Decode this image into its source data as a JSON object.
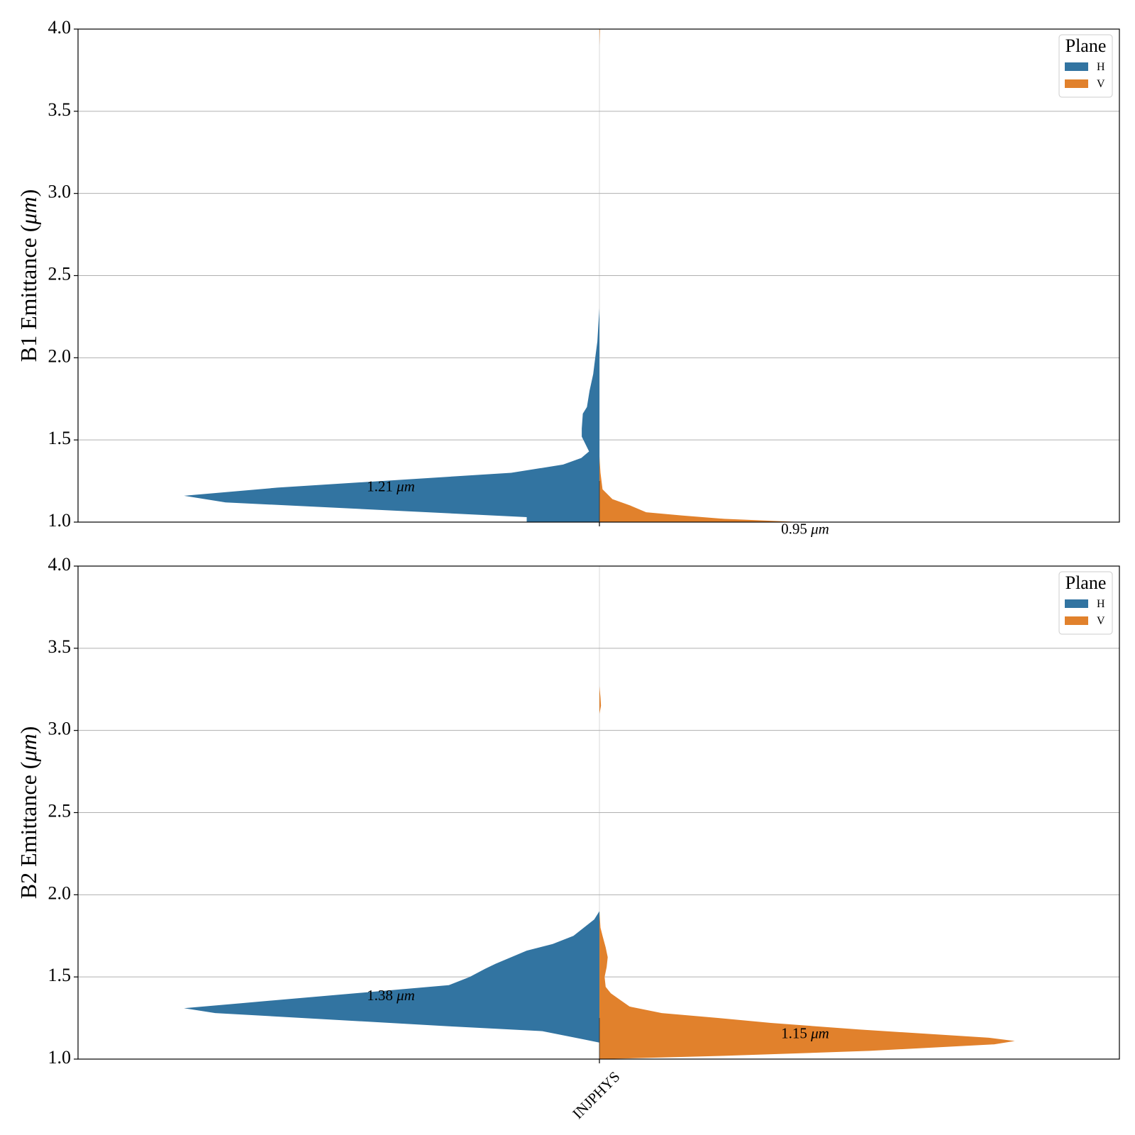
{
  "colors": {
    "H": "#3274a1",
    "V": "#e1812c",
    "grid": "#b0b0b0"
  },
  "chart_data": [
    {
      "type": "violin",
      "split": true,
      "ylabel": "B1 Emittance (μm)",
      "ylabel_prefix": "B1 Emittance (",
      "ylabel_unit": "μm",
      "ylabel_suffix": ")",
      "ylim": [
        1.0,
        4.0
      ],
      "yticks": [
        "1.0",
        "1.5",
        "2.0",
        "2.5",
        "3.0",
        "3.5",
        "4.0"
      ],
      "grid": true,
      "categories": [
        "INJPHYS"
      ],
      "legend": {
        "title": "Plane",
        "position": "top-right",
        "entries": [
          "H",
          "V"
        ]
      },
      "series": [
        {
          "name": "H",
          "side": "left",
          "profile": [
            [
              1.0,
              0.14
            ],
            [
              1.03,
              0.14
            ],
            [
              1.12,
              0.72
            ],
            [
              1.16,
              0.8
            ],
            [
              1.21,
              0.62
            ],
            [
              1.3,
              0.17
            ],
            [
              1.35,
              0.07
            ],
            [
              1.39,
              0.035
            ],
            [
              1.43,
              0.02
            ],
            [
              1.52,
              0.034
            ],
            [
              1.57,
              0.034
            ],
            [
              1.66,
              0.032
            ],
            [
              1.7,
              0.024
            ],
            [
              1.8,
              0.019
            ],
            [
              1.9,
              0.012
            ],
            [
              2.0,
              0.008
            ],
            [
              2.1,
              0.004
            ],
            [
              2.2,
              0.002
            ],
            [
              2.3,
              0.0
            ]
          ],
          "annotation_value": "1.21",
          "annotation_unit": "μm",
          "annotation_y": 1.21
        },
        {
          "name": "V",
          "side": "right",
          "profile": [
            [
              1.0,
              0.39
            ],
            [
              1.02,
              0.24
            ],
            [
              1.04,
              0.16
            ],
            [
              1.06,
              0.09
            ],
            [
              1.1,
              0.06
            ],
            [
              1.14,
              0.025
            ],
            [
              1.2,
              0.006
            ],
            [
              1.3,
              0.002
            ],
            [
              1.4,
              0.0
            ],
            [
              3.9,
              0.0
            ],
            [
              4.0,
              0.001
            ]
          ],
          "annotation_value": "0.95",
          "annotation_unit": "μm",
          "annotation_y": 0.95
        }
      ]
    },
    {
      "type": "violin",
      "split": true,
      "ylabel": "B2 Emittance (μm)",
      "ylabel_prefix": "B2 Emittance (",
      "ylabel_unit": "μm",
      "ylabel_suffix": ")",
      "ylim": [
        1.0,
        4.0
      ],
      "yticks": [
        "1.0",
        "1.5",
        "2.0",
        "2.5",
        "3.0",
        "3.5",
        "4.0"
      ],
      "grid": true,
      "categories": [
        "INJPHYS"
      ],
      "legend": {
        "title": "Plane",
        "position": "top-right",
        "entries": [
          "H",
          "V"
        ]
      },
      "series": [
        {
          "name": "H",
          "side": "left",
          "profile": [
            [
              1.1,
              0.0
            ],
            [
              1.12,
              0.03
            ],
            [
              1.17,
              0.11
            ],
            [
              1.2,
              0.29
            ],
            [
              1.28,
              0.74
            ],
            [
              1.31,
              0.8
            ],
            [
              1.34,
              0.69
            ],
            [
              1.45,
              0.29
            ],
            [
              1.5,
              0.25
            ],
            [
              1.55,
              0.22
            ],
            [
              1.58,
              0.2
            ],
            [
              1.66,
              0.14
            ],
            [
              1.7,
              0.09
            ],
            [
              1.75,
              0.05
            ],
            [
              1.8,
              0.03
            ],
            [
              1.85,
              0.01
            ],
            [
              1.9,
              0.0
            ]
          ],
          "annotation_value": "1.38",
          "annotation_unit": "μm",
          "annotation_y": 1.38
        },
        {
          "name": "V",
          "side": "right",
          "profile": [
            [
              1.0,
              0.0
            ],
            [
              1.02,
              0.24
            ],
            [
              1.05,
              0.52
            ],
            [
              1.09,
              0.76
            ],
            [
              1.11,
              0.8
            ],
            [
              1.13,
              0.75
            ],
            [
              1.18,
              0.5
            ],
            [
              1.22,
              0.33
            ],
            [
              1.25,
              0.23
            ],
            [
              1.28,
              0.12
            ],
            [
              1.32,
              0.058
            ],
            [
              1.36,
              0.04
            ],
            [
              1.4,
              0.022
            ],
            [
              1.44,
              0.012
            ],
            [
              1.5,
              0.01
            ],
            [
              1.56,
              0.014
            ],
            [
              1.62,
              0.016
            ],
            [
              1.68,
              0.012
            ],
            [
              1.75,
              0.006
            ],
            [
              1.8,
              0.002
            ],
            [
              1.9,
              0.0
            ],
            [
              3.1,
              0.0
            ],
            [
              3.15,
              0.003
            ],
            [
              3.2,
              0.002
            ],
            [
              3.27,
              0.0
            ]
          ],
          "annotation_value": "1.15",
          "annotation_unit": "μm",
          "annotation_y": 1.15
        }
      ]
    }
  ]
}
